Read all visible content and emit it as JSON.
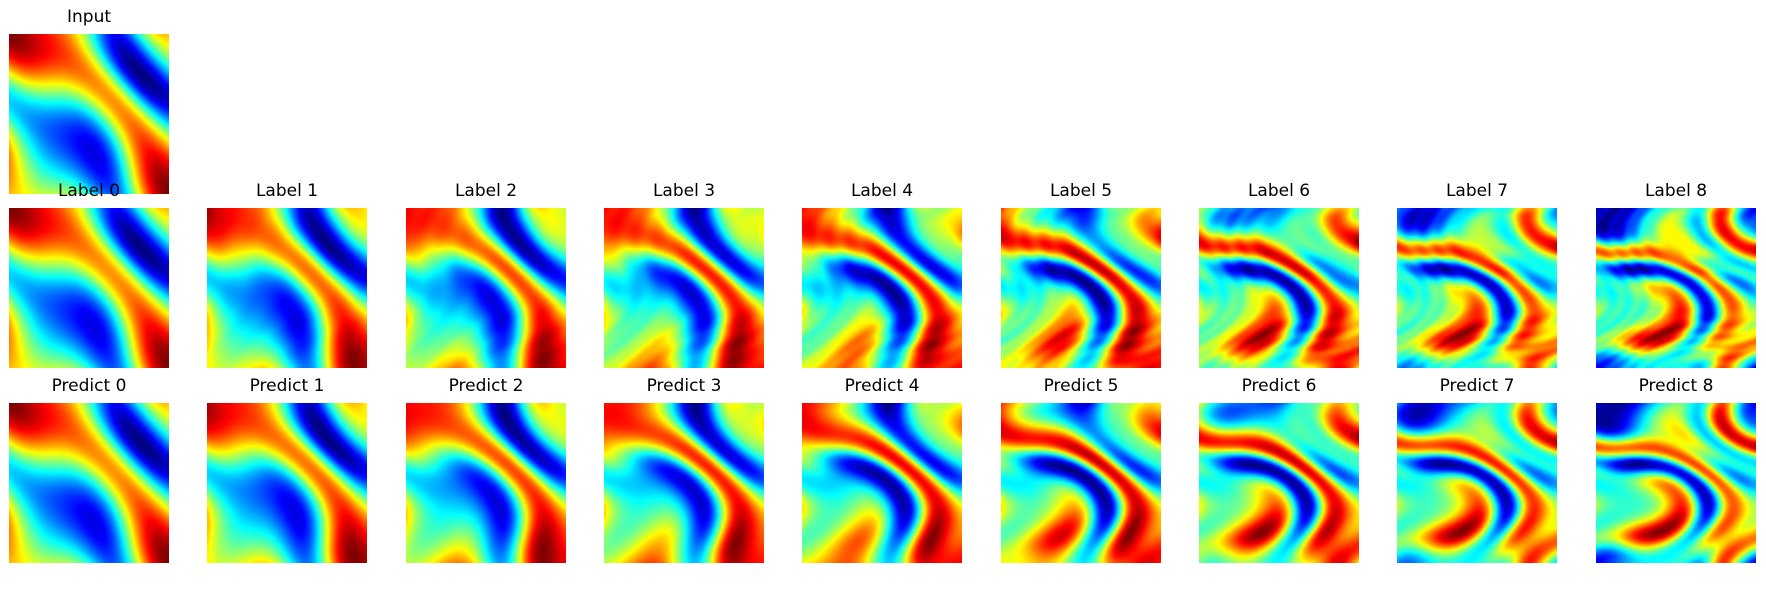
{
  "figure": {
    "input": {
      "title": "Input",
      "seed": 0
    },
    "labels": [
      {
        "title": "Label 0",
        "seed": 0
      },
      {
        "title": "Label 1",
        "seed": 1
      },
      {
        "title": "Label 2",
        "seed": 2
      },
      {
        "title": "Label 3",
        "seed": 3
      },
      {
        "title": "Label 4",
        "seed": 4
      },
      {
        "title": "Label 5",
        "seed": 5
      },
      {
        "title": "Label 6",
        "seed": 6
      },
      {
        "title": "Label 7",
        "seed": 7
      },
      {
        "title": "Label 8",
        "seed": 8
      }
    ],
    "predicts": [
      {
        "title": "Predict 0",
        "seed": 0
      },
      {
        "title": "Predict 1",
        "seed": 1
      },
      {
        "title": "Predict 2",
        "seed": 2
      },
      {
        "title": "Predict 3",
        "seed": 3
      },
      {
        "title": "Predict 4",
        "seed": 4
      },
      {
        "title": "Predict 5",
        "seed": 5
      },
      {
        "title": "Predict 6",
        "seed": 6
      },
      {
        "title": "Predict 7",
        "seed": 7
      },
      {
        "title": "Predict 8",
        "seed": 8
      }
    ],
    "colormap": "jet"
  }
}
